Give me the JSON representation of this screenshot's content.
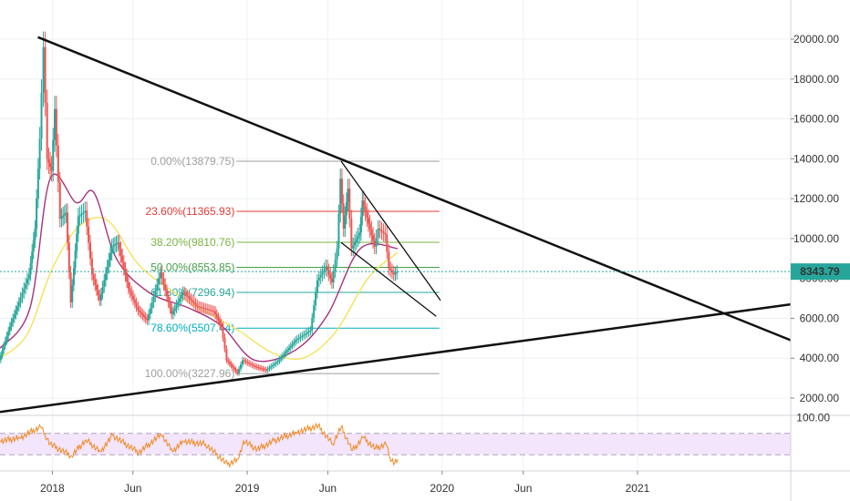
{
  "chart_data": {
    "type": "line",
    "price_axis": {
      "range": [
        1200,
        21000
      ],
      "ticks": [
        {
          "value": 2000,
          "label": "2000.00"
        },
        {
          "value": 4000,
          "label": "4000.00"
        },
        {
          "value": 6000,
          "label": "6000.00"
        },
        {
          "value": 8000,
          "label": "8000.00"
        },
        {
          "value": 10000,
          "label": "10000.00"
        },
        {
          "value": 12000,
          "label": "12000.00"
        },
        {
          "value": 14000,
          "label": "14000.00"
        },
        {
          "value": 16000,
          "label": "16000.00"
        },
        {
          "value": 18000,
          "label": "18000.00"
        },
        {
          "value": 20000,
          "label": "20000.00"
        }
      ]
    },
    "time_axis": {
      "range": [
        "2017-09-25",
        "2021-10-15"
      ],
      "ticks": [
        {
          "date": "2018-01-01",
          "label": "2018"
        },
        {
          "date": "2018-06-01",
          "label": "Jun"
        },
        {
          "date": "2019-01-01",
          "label": "2019"
        },
        {
          "date": "2019-06-01",
          "label": "Jun"
        },
        {
          "date": "2020-01-01",
          "label": "2020"
        },
        {
          "date": "2020-06-01",
          "label": "Jun"
        },
        {
          "date": "2021-01-01",
          "label": "2021"
        }
      ]
    },
    "current_price": {
      "value": 8343.79,
      "label": "8343.79",
      "color": "#26a69a"
    },
    "price_series": [
      {
        "date": "2017-09-25",
        "value": 3900
      },
      {
        "date": "2017-10-15",
        "value": 5600
      },
      {
        "date": "2017-11-01",
        "value": 6800
      },
      {
        "date": "2017-11-20",
        "value": 8200
      },
      {
        "date": "2017-12-01",
        "value": 10500
      },
      {
        "date": "2017-12-10",
        "value": 15000
      },
      {
        "date": "2017-12-17",
        "value": 19600
      },
      {
        "date": "2017-12-24",
        "value": 14000
      },
      {
        "date": "2018-01-01",
        "value": 13400
      },
      {
        "date": "2018-01-07",
        "value": 16500
      },
      {
        "date": "2018-01-17",
        "value": 11000
      },
      {
        "date": "2018-01-28",
        "value": 11300
      },
      {
        "date": "2018-02-06",
        "value": 6800
      },
      {
        "date": "2018-02-20",
        "value": 11100
      },
      {
        "date": "2018-03-05",
        "value": 11400
      },
      {
        "date": "2018-03-18",
        "value": 8200
      },
      {
        "date": "2018-04-01",
        "value": 6900
      },
      {
        "date": "2018-04-24",
        "value": 9600
      },
      {
        "date": "2018-05-05",
        "value": 9800
      },
      {
        "date": "2018-05-25",
        "value": 7500
      },
      {
        "date": "2018-06-12",
        "value": 6400
      },
      {
        "date": "2018-06-29",
        "value": 5900
      },
      {
        "date": "2018-07-24",
        "value": 8300
      },
      {
        "date": "2018-08-14",
        "value": 6200
      },
      {
        "date": "2018-09-04",
        "value": 7300
      },
      {
        "date": "2018-10-01",
        "value": 6600
      },
      {
        "date": "2018-11-01",
        "value": 6350
      },
      {
        "date": "2018-11-15",
        "value": 5600
      },
      {
        "date": "2018-11-25",
        "value": 3900
      },
      {
        "date": "2018-12-15",
        "value": 3250
      },
      {
        "date": "2018-12-25",
        "value": 3900
      },
      {
        "date": "2019-01-15",
        "value": 3600
      },
      {
        "date": "2019-02-07",
        "value": 3400
      },
      {
        "date": "2019-03-01",
        "value": 3850
      },
      {
        "date": "2019-04-03",
        "value": 4900
      },
      {
        "date": "2019-05-01",
        "value": 5400
      },
      {
        "date": "2019-05-14",
        "value": 7900
      },
      {
        "date": "2019-05-30",
        "value": 8600
      },
      {
        "date": "2019-06-10",
        "value": 7800
      },
      {
        "date": "2019-06-20",
        "value": 9500
      },
      {
        "date": "2019-06-26",
        "value": 13000
      },
      {
        "date": "2019-07-02",
        "value": 10500
      },
      {
        "date": "2019-07-10",
        "value": 12500
      },
      {
        "date": "2019-07-17",
        "value": 9500
      },
      {
        "date": "2019-08-01",
        "value": 10300
      },
      {
        "date": "2019-08-06",
        "value": 11900
      },
      {
        "date": "2019-08-29",
        "value": 9600
      },
      {
        "date": "2019-09-05",
        "value": 10500
      },
      {
        "date": "2019-09-18",
        "value": 10200
      },
      {
        "date": "2019-09-25",
        "value": 8500
      },
      {
        "date": "2019-10-04",
        "value": 8200
      },
      {
        "date": "2019-10-10",
        "value": 8343.79
      }
    ],
    "moving_averages": [
      {
        "color": "#f5e25a",
        "points": [
          {
            "date": "2017-09-25",
            "value": 4000
          },
          {
            "date": "2017-11-15",
            "value": 5200
          },
          {
            "date": "2018-01-01",
            "value": 8500
          },
          {
            "date": "2018-02-20",
            "value": 10600
          },
          {
            "date": "2018-04-15",
            "value": 10900
          },
          {
            "date": "2018-06-15",
            "value": 8600
          },
          {
            "date": "2018-09-15",
            "value": 6800
          },
          {
            "date": "2018-12-15",
            "value": 5400
          },
          {
            "date": "2019-02-15",
            "value": 4300
          },
          {
            "date": "2019-04-15",
            "value": 4000
          },
          {
            "date": "2019-06-15",
            "value": 5300
          },
          {
            "date": "2019-08-15",
            "value": 8000
          },
          {
            "date": "2019-10-10",
            "value": 9300
          }
        ]
      },
      {
        "color": "#a6327d",
        "points": [
          {
            "date": "2017-09-25",
            "value": 4500
          },
          {
            "date": "2017-11-20",
            "value": 6500
          },
          {
            "date": "2017-12-28",
            "value": 13000
          },
          {
            "date": "2018-02-15",
            "value": 11800
          },
          {
            "date": "2018-03-20",
            "value": 12300
          },
          {
            "date": "2018-05-01",
            "value": 9000
          },
          {
            "date": "2018-07-01",
            "value": 7300
          },
          {
            "date": "2018-09-15",
            "value": 6500
          },
          {
            "date": "2018-11-15",
            "value": 5600
          },
          {
            "date": "2019-01-15",
            "value": 3900
          },
          {
            "date": "2019-04-01",
            "value": 4400
          },
          {
            "date": "2019-06-01",
            "value": 6200
          },
          {
            "date": "2019-08-01",
            "value": 9500
          },
          {
            "date": "2019-10-10",
            "value": 9500
          }
        ]
      }
    ],
    "trendlines": [
      {
        "color": "#111111",
        "from": {
          "date": "2017-12-05",
          "value": 20100
        },
        "to": {
          "date": "2021-10-15",
          "value": 4900
        }
      },
      {
        "color": "#111111",
        "from": {
          "date": "2017-09-25",
          "value": 1300
        },
        "to": {
          "date": "2021-10-15",
          "value": 6700
        }
      },
      {
        "color": "#111111",
        "from": {
          "date": "2019-06-26",
          "value": 13879.75
        },
        "to": {
          "date": "2019-12-29",
          "value": 6900
        }
      },
      {
        "color": "#111111",
        "from": {
          "date": "2019-06-26",
          "value": 9800
        },
        "to": {
          "date": "2019-12-21",
          "value": 6100
        }
      }
    ],
    "fibonacci": {
      "from_date": "2018-12-12",
      "to_date": "2019-12-27",
      "levels": [
        {
          "ratio": "0.00%",
          "price": 13879.75,
          "label": "0.00%(13879.75)",
          "color": "#9e9e9e"
        },
        {
          "ratio": "23.60%",
          "price": 11365.93,
          "label": "23.60%(11365.93)",
          "color": "#e53935"
        },
        {
          "ratio": "38.20%",
          "price": 9810.76,
          "label": "38.20%(9810.76)",
          "color": "#7cb342"
        },
        {
          "ratio": "50.00%",
          "price": 8553.85,
          "label": "50.00%(8553.85)",
          "color": "#43a047"
        },
        {
          "ratio": "61.80%",
          "price": 7296.94,
          "label": "61.80%(7296.94)",
          "color": "#26a69a"
        },
        {
          "ratio": "78.60%",
          "price": 5507.44,
          "label": "78.60%(5507.44)",
          "color": "#00acc1"
        },
        {
          "ratio": "100.00%",
          "price": 3227.96,
          "label": "100.00%(3227.96)",
          "color": "#9e9e9e"
        }
      ]
    },
    "rsi": {
      "tick": {
        "value": 100,
        "label": "100.00"
      },
      "band": [
        30,
        70
      ],
      "line_color": "#f08a24",
      "band_color": "#f3e5fb",
      "values": [
        {
          "date": "2017-09-25",
          "value": 55
        },
        {
          "date": "2017-11-01",
          "value": 62
        },
        {
          "date": "2017-12-10",
          "value": 82
        },
        {
          "date": "2017-12-28",
          "value": 50
        },
        {
          "date": "2018-02-06",
          "value": 28
        },
        {
          "date": "2018-03-05",
          "value": 58
        },
        {
          "date": "2018-04-01",
          "value": 36
        },
        {
          "date": "2018-04-24",
          "value": 66
        },
        {
          "date": "2018-06-12",
          "value": 34
        },
        {
          "date": "2018-07-24",
          "value": 68
        },
        {
          "date": "2018-08-14",
          "value": 36
        },
        {
          "date": "2018-09-04",
          "value": 55
        },
        {
          "date": "2018-10-15",
          "value": 50
        },
        {
          "date": "2018-11-25",
          "value": 12
        },
        {
          "date": "2018-12-15",
          "value": 22
        },
        {
          "date": "2018-12-25",
          "value": 56
        },
        {
          "date": "2019-01-20",
          "value": 40
        },
        {
          "date": "2019-02-20",
          "value": 56
        },
        {
          "date": "2019-04-03",
          "value": 72
        },
        {
          "date": "2019-05-14",
          "value": 84
        },
        {
          "date": "2019-06-10",
          "value": 50
        },
        {
          "date": "2019-06-26",
          "value": 82
        },
        {
          "date": "2019-07-17",
          "value": 38
        },
        {
          "date": "2019-08-06",
          "value": 62
        },
        {
          "date": "2019-08-29",
          "value": 42
        },
        {
          "date": "2019-09-18",
          "value": 50
        },
        {
          "date": "2019-09-25",
          "value": 26
        },
        {
          "date": "2019-10-04",
          "value": 14
        },
        {
          "date": "2019-10-10",
          "value": 22
        }
      ]
    },
    "grid": true
  }
}
